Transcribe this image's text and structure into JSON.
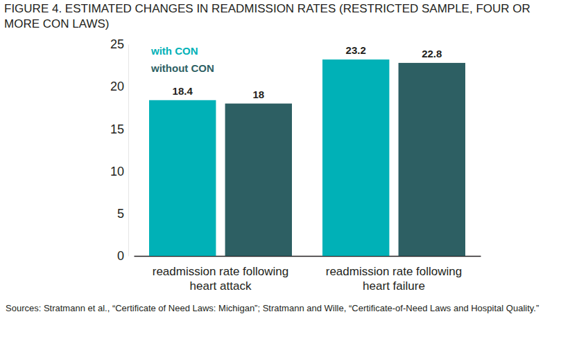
{
  "chart_data": {
    "type": "bar",
    "title": "FIGURE 4. ESTIMATED CHANGES IN READMISSION RATES (RESTRICTED SAMPLE, FOUR OR MORE CON LAWS)",
    "source": "Sources: Stratmann et al., “Certificate of Need Laws: Michigan”; Stratmann and Wille, “Certificate-of-Need Laws and Hospital Quality.”",
    "categories": [
      "readmission rate following heart attack",
      "readmission rate following heart failure"
    ],
    "series": [
      {
        "name": "with CON",
        "color": "#00b1b7",
        "values": [
          18.4,
          23.2
        ]
      },
      {
        "name": "without CON",
        "color": "#2d5f63",
        "values": [
          18,
          22.8
        ]
      }
    ],
    "ylim": [
      0,
      25
    ],
    "yticks": [
      0,
      5,
      10,
      15,
      20,
      25
    ],
    "grid": false,
    "legend": "top-left",
    "data_labels": true
  }
}
